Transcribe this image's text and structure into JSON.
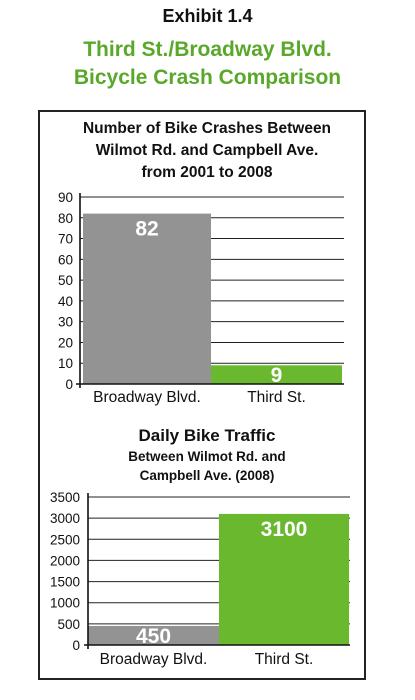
{
  "exhibit": "Exhibit 1.4",
  "title_lines": [
    "Third St./Broadway Blvd.",
    "Bicycle Crash Comparison"
  ],
  "colors": {
    "broadway": "#939393",
    "third": "#6ab82e",
    "title_green": "#5aa82a"
  },
  "chart_data": [
    {
      "type": "bar",
      "title_lines": [
        "Number of Bike Crashes Between",
        "Wilmot Rd. and Campbell Ave.",
        "from 2001 to 2008"
      ],
      "categories": [
        "Broadway Blvd.",
        "Third St."
      ],
      "values": [
        82,
        9
      ],
      "value_labels": [
        "82",
        "9"
      ],
      "ylim": [
        0,
        90
      ],
      "yticks": [
        "0",
        "10",
        "20",
        "30",
        "40",
        "50",
        "60",
        "70",
        "80",
        "90"
      ],
      "grid": true
    },
    {
      "type": "bar",
      "title_lines": [
        "Daily Bike Traffic",
        "Between Wilmot Rd. and",
        "Campbell Ave. (2008)"
      ],
      "categories": [
        "Broadway Blvd.",
        "Third St."
      ],
      "values": [
        450,
        3100
      ],
      "value_labels": [
        "450",
        "3100"
      ],
      "ylim": [
        0,
        3500
      ],
      "yticks": [
        "0",
        "500",
        "1000",
        "1500",
        "2000",
        "2500",
        "3000",
        "3500"
      ],
      "grid": true
    }
  ]
}
